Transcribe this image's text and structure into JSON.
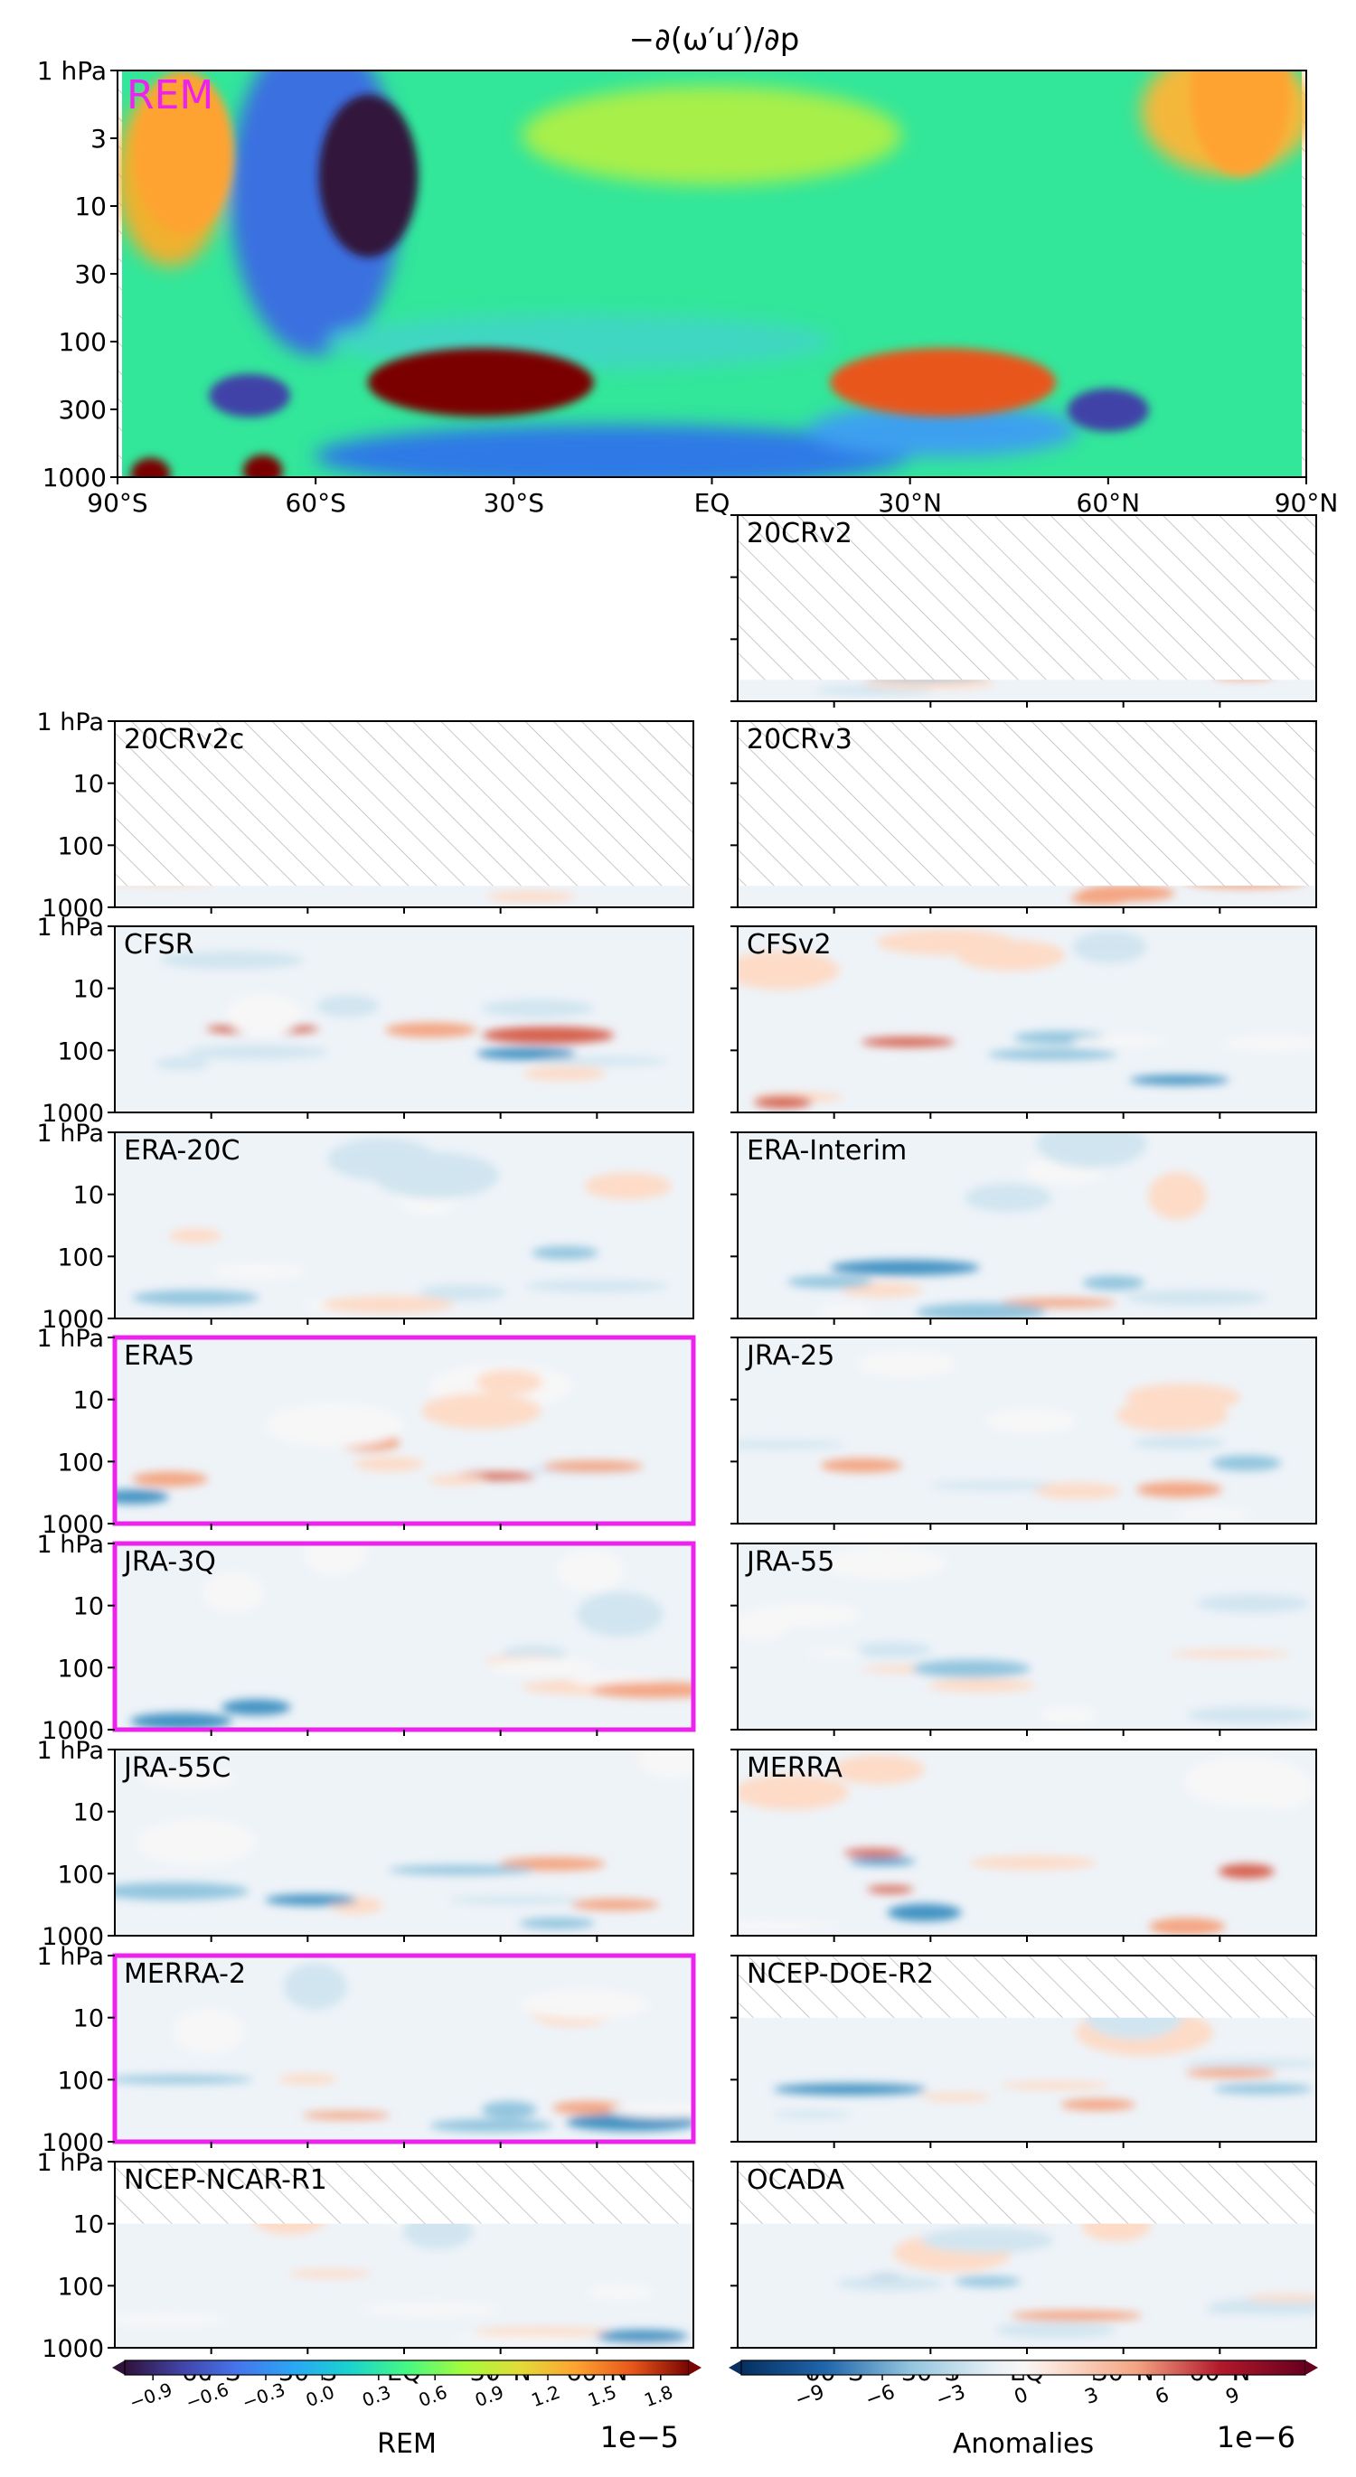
{
  "figure": {
    "title": "−∂(ω′u′)/∂p",
    "colors": {
      "highlight": "#ee22ee",
      "axes": "#000000",
      "hatch": "#bbbbbb"
    }
  },
  "chart_data": [
    {
      "type": "heatmap",
      "id": "rem",
      "label": "REM",
      "x_ticks": [
        "90°S",
        "60°S",
        "30°S",
        "EQ",
        "30°N",
        "60°N",
        "90°N"
      ],
      "y_ticks": [
        "1 hPa",
        "3",
        "10",
        "30",
        "100",
        "300",
        "1000"
      ],
      "colormap": "turbo",
      "features": [
        {
          "lat": -52,
          "p": 6,
          "value": -0.95
        },
        {
          "lat": -80,
          "p": 4,
          "value": 1.4
        },
        {
          "lat": 80,
          "p": 1.5,
          "value": 1.3
        },
        {
          "lat": -35,
          "p": 200,
          "value": 1.85
        },
        {
          "lat": 35,
          "p": 200,
          "value": 1.7
        },
        {
          "lat": -70,
          "p": 250,
          "value": -0.9
        },
        {
          "lat": 60,
          "p": 320,
          "value": -0.9
        },
        {
          "lat": -85,
          "p": 950,
          "value": 1.8
        },
        {
          "lat": -68,
          "p": 900,
          "value": 1.8
        }
      ]
    },
    {
      "type": "heatmap",
      "id": "panels",
      "colormap": "RdBu_r",
      "x_ticks": [
        "60°S",
        "30°S",
        "EQ",
        "30°N",
        "60°N"
      ],
      "y_ticks": [
        "1 hPa",
        "10",
        "100",
        "1000"
      ],
      "panels": [
        {
          "label": "20CRv2",
          "show_yticks": false,
          "highlight": false,
          "top_hatch_p": 450
        },
        {
          "label": "20CRv2c",
          "show_yticks": true,
          "highlight": false,
          "top_hatch_p": 450
        },
        {
          "label": "20CRv3",
          "show_yticks": false,
          "highlight": false,
          "top_hatch_p": 450
        },
        {
          "label": "CFSR",
          "show_yticks": true,
          "highlight": false,
          "top_hatch_p": 0
        },
        {
          "label": "CFSv2",
          "show_yticks": false,
          "highlight": false,
          "top_hatch_p": 0
        },
        {
          "label": "ERA-20C",
          "show_yticks": true,
          "highlight": false,
          "top_hatch_p": 0
        },
        {
          "label": "ERA-Interim",
          "show_yticks": false,
          "highlight": false,
          "top_hatch_p": 0
        },
        {
          "label": "ERA5",
          "show_yticks": true,
          "highlight": true,
          "top_hatch_p": 0
        },
        {
          "label": "JRA-25",
          "show_yticks": false,
          "highlight": false,
          "top_hatch_p": 0
        },
        {
          "label": "JRA-3Q",
          "show_yticks": true,
          "highlight": true,
          "top_hatch_p": 0
        },
        {
          "label": "JRA-55",
          "show_yticks": false,
          "highlight": false,
          "top_hatch_p": 0
        },
        {
          "label": "JRA-55C",
          "show_yticks": true,
          "highlight": false,
          "top_hatch_p": 0
        },
        {
          "label": "MERRA",
          "show_yticks": false,
          "highlight": false,
          "top_hatch_p": 0
        },
        {
          "label": "MERRA-2",
          "show_yticks": true,
          "highlight": true,
          "top_hatch_p": 0
        },
        {
          "label": "NCEP-DOE-R2",
          "show_yticks": false,
          "highlight": false,
          "top_hatch_p": 10
        },
        {
          "label": "NCEP-NCAR-R1",
          "show_yticks": true,
          "highlight": false,
          "top_hatch_p": 10
        },
        {
          "label": "OCADA",
          "show_yticks": false,
          "highlight": false,
          "top_hatch_p": 10
        }
      ]
    },
    {
      "type": "colorbar",
      "id": "rem-colorbar",
      "colormap": "turbo",
      "ticks": [
        "−0.9",
        "−0.6",
        "−0.3",
        "0.0",
        "0.3",
        "0.6",
        "0.9",
        "1.2",
        "1.5",
        "1.8"
      ],
      "label": "REM",
      "scale_text": "1e−5",
      "range": [
        -1.05,
        1.95
      ]
    },
    {
      "type": "colorbar",
      "id": "anomaly-colorbar",
      "colormap": "RdBu_r",
      "ticks": [
        "−9",
        "−6",
        "−3",
        "0",
        "3",
        "6",
        "9"
      ],
      "label": "Anomalies",
      "scale_text": "1e−6",
      "range": [
        -12,
        12
      ]
    }
  ]
}
